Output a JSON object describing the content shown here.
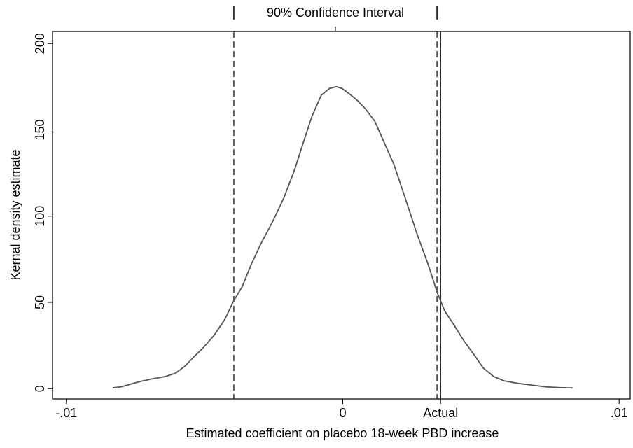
{
  "chart_data": {
    "type": "line",
    "x_label": "Estimated coefficient on placebo 18-week PBD increase",
    "y_label": "Kernal density estimate",
    "x": [
      -0.00832,
      -0.00802,
      -0.00769,
      -0.00731,
      -0.00693,
      -0.00642,
      -0.00604,
      -0.00571,
      -0.00541,
      -0.00503,
      -0.00465,
      -0.00427,
      -0.00394,
      -0.00364,
      -0.00331,
      -0.00296,
      -0.0025,
      -0.00212,
      -0.00174,
      -0.00144,
      -0.00111,
      -0.00078,
      -0.00048,
      -0.00023,
      -3e-05,
      0.00023,
      0.00053,
      0.00083,
      0.00116,
      0.00149,
      0.00185,
      0.00225,
      0.00268,
      0.00311,
      0.00341,
      0.00369,
      0.00402,
      0.00437,
      0.00478,
      0.00508,
      0.00546,
      0.00584,
      0.00635,
      0.00685,
      0.00736,
      0.00786,
      0.00832
    ],
    "series": [
      {
        "name": "Kernel density",
        "color": "#555555",
        "values": [
          0.5,
          1,
          2.5,
          4.2,
          5.5,
          7,
          9,
          13,
          18,
          24,
          31,
          40,
          51,
          59,
          72,
          84,
          98,
          111,
          127,
          142,
          158,
          170,
          174,
          175,
          174,
          171,
          167,
          162,
          155,
          143,
          130,
          111,
          90,
          71,
          56,
          45,
          37,
          28,
          19,
          12,
          7,
          4.5,
          3,
          2,
          1,
          0.6,
          0.4
        ]
      }
    ],
    "xlim": [
      -0.0105,
      0.0104
    ],
    "ylim": [
      -6,
      207
    ],
    "xticks": [
      {
        "value": -0.01,
        "label": "-.01"
      },
      0,
      {
        "value": 0.00354,
        "label": "Actual"
      },
      {
        "value": 0.01,
        "label": ".01"
      }
    ],
    "yticks": [
      0,
      50,
      100,
      150,
      200
    ],
    "ci": [
      -0.00394,
      0.00341
    ],
    "ci_label": "90% Confidence Interval",
    "grid": false
  }
}
